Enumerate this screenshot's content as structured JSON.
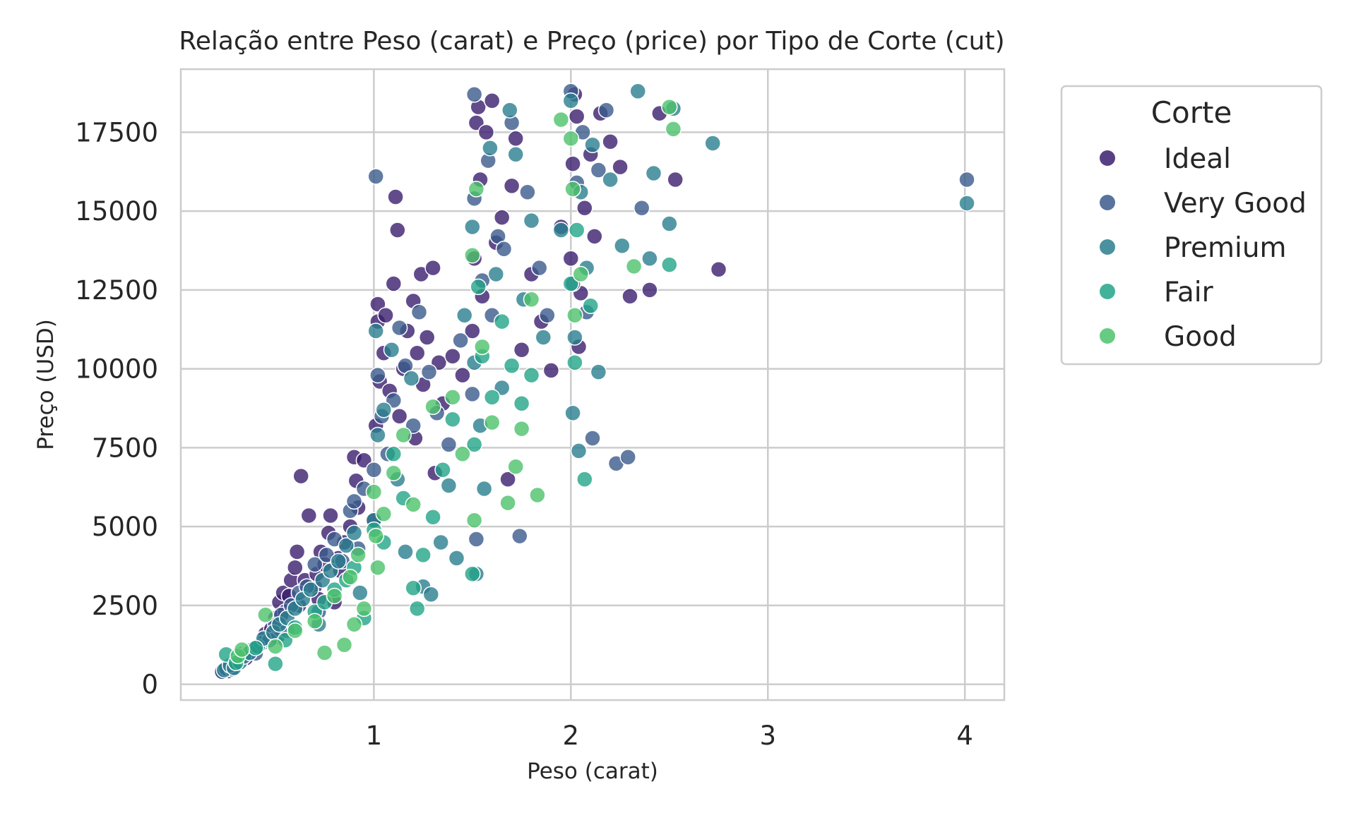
{
  "chart_data": {
    "type": "scatter",
    "title": "Relação entre Peso (carat) e Preço (price) por Tipo de Corte (cut)",
    "xlabel": "Peso (carat)",
    "ylabel": "Preço (USD)",
    "xlim": [
      0.02,
      4.2
    ],
    "ylim": [
      -500,
      19500
    ],
    "xticks": [
      1,
      2,
      3,
      4
    ],
    "yticks": [
      0,
      2500,
      5000,
      7500,
      10000,
      12500,
      15000,
      17500
    ],
    "grid": true,
    "legend": {
      "title": "Corte",
      "placement": "outside-right",
      "entries": [
        "Ideal",
        "Very Good",
        "Premium",
        "Fair",
        "Good"
      ]
    },
    "colors": {
      "Ideal": "#3b1e6e",
      "Very Good": "#3b5a8c",
      "Premium": "#2a7e8e",
      "Fair": "#23a487",
      "Good": "#4cc26c"
    },
    "series": [
      {
        "name": "Ideal",
        "points": [
          [
            0.23,
            380
          ],
          [
            0.26,
            420
          ],
          [
            0.28,
            560
          ],
          [
            0.3,
            620
          ],
          [
            0.31,
            780
          ],
          [
            0.33,
            960
          ],
          [
            0.35,
            830
          ],
          [
            0.38,
            1050
          ],
          [
            0.4,
            1100
          ],
          [
            0.42,
            1250
          ],
          [
            0.45,
            1600
          ],
          [
            0.48,
            1750
          ],
          [
            0.5,
            2100
          ],
          [
            0.51,
            1500
          ],
          [
            0.52,
            2600
          ],
          [
            0.54,
            2900
          ],
          [
            0.55,
            2300
          ],
          [
            0.57,
            2800
          ],
          [
            0.58,
            3300
          ],
          [
            0.6,
            3700
          ],
          [
            0.61,
            4200
          ],
          [
            0.62,
            2500
          ],
          [
            0.63,
            6600
          ],
          [
            0.65,
            3300
          ],
          [
            0.67,
            5350
          ],
          [
            0.7,
            3100
          ],
          [
            0.71,
            3500
          ],
          [
            0.72,
            2700
          ],
          [
            0.73,
            4200
          ],
          [
            0.75,
            3800
          ],
          [
            0.77,
            4800
          ],
          [
            0.78,
            5350
          ],
          [
            0.8,
            2600
          ],
          [
            0.82,
            4000
          ],
          [
            0.83,
            3600
          ],
          [
            0.85,
            4500
          ],
          [
            0.88,
            5000
          ],
          [
            0.9,
            7200
          ],
          [
            0.91,
            6450
          ],
          [
            0.92,
            5600
          ],
          [
            0.95,
            7100
          ],
          [
            1.0,
            5200
          ],
          [
            1.01,
            8200
          ],
          [
            1.02,
            11500
          ],
          [
            1.02,
            12050
          ],
          [
            1.03,
            9600
          ],
          [
            1.05,
            10500
          ],
          [
            1.06,
            11700
          ],
          [
            1.08,
            9300
          ],
          [
            1.1,
            12700
          ],
          [
            1.11,
            15450
          ],
          [
            1.12,
            14400
          ],
          [
            1.13,
            8500
          ],
          [
            1.15,
            10000
          ],
          [
            1.17,
            11200
          ],
          [
            1.2,
            12150
          ],
          [
            1.21,
            7800
          ],
          [
            1.22,
            10500
          ],
          [
            1.24,
            13000
          ],
          [
            1.25,
            9500
          ],
          [
            1.27,
            11000
          ],
          [
            1.3,
            13200
          ],
          [
            1.31,
            6700
          ],
          [
            1.33,
            10200
          ],
          [
            1.35,
            8900
          ],
          [
            1.4,
            10400
          ],
          [
            1.45,
            9800
          ],
          [
            1.5,
            11200
          ],
          [
            1.51,
            13500
          ],
          [
            1.52,
            17800
          ],
          [
            1.53,
            18300
          ],
          [
            1.54,
            16000
          ],
          [
            1.55,
            12300
          ],
          [
            1.57,
            17500
          ],
          [
            1.6,
            18500
          ],
          [
            1.62,
            14000
          ],
          [
            1.65,
            14800
          ],
          [
            1.68,
            6500
          ],
          [
            1.7,
            15800
          ],
          [
            1.72,
            17300
          ],
          [
            1.75,
            10600
          ],
          [
            1.8,
            13000
          ],
          [
            1.85,
            11500
          ],
          [
            1.9,
            9950
          ],
          [
            1.95,
            14500
          ],
          [
            2.0,
            13500
          ],
          [
            2.01,
            16500
          ],
          [
            2.02,
            18700
          ],
          [
            2.03,
            18000
          ],
          [
            2.04,
            10700
          ],
          [
            2.05,
            12400
          ],
          [
            2.07,
            15100
          ],
          [
            2.1,
            16800
          ],
          [
            2.12,
            14200
          ],
          [
            2.15,
            18100
          ],
          [
            2.2,
            17200
          ],
          [
            2.25,
            16400
          ],
          [
            2.3,
            12300
          ],
          [
            2.4,
            12500
          ],
          [
            2.45,
            18100
          ],
          [
            2.53,
            16000
          ],
          [
            2.75,
            13150
          ]
        ]
      },
      {
        "name": "Very Good",
        "points": [
          [
            0.23,
            400
          ],
          [
            0.25,
            500
          ],
          [
            0.28,
            480
          ],
          [
            0.3,
            720
          ],
          [
            0.32,
            850
          ],
          [
            0.35,
            950
          ],
          [
            0.38,
            1100
          ],
          [
            0.4,
            980
          ],
          [
            0.43,
            1300
          ],
          [
            0.47,
            1400
          ],
          [
            0.5,
            1900
          ],
          [
            0.53,
            2200
          ],
          [
            0.56,
            1700
          ],
          [
            0.58,
            2500
          ],
          [
            0.62,
            2900
          ],
          [
            0.66,
            3100
          ],
          [
            0.7,
            3800
          ],
          [
            0.72,
            2300
          ],
          [
            0.76,
            4100
          ],
          [
            0.8,
            4600
          ],
          [
            0.84,
            3900
          ],
          [
            0.88,
            5500
          ],
          [
            0.9,
            5800
          ],
          [
            0.92,
            4300
          ],
          [
            0.95,
            6200
          ],
          [
            1.0,
            6800
          ],
          [
            1.01,
            16100
          ],
          [
            1.02,
            9800
          ],
          [
            1.04,
            8500
          ],
          [
            1.07,
            7300
          ],
          [
            1.1,
            9000
          ],
          [
            1.13,
            11300
          ],
          [
            1.16,
            10100
          ],
          [
            1.2,
            8200
          ],
          [
            1.23,
            11800
          ],
          [
            1.28,
            9900
          ],
          [
            1.32,
            8600
          ],
          [
            1.38,
            7600
          ],
          [
            1.44,
            10900
          ],
          [
            1.5,
            9200
          ],
          [
            1.51,
            15400
          ],
          [
            1.51,
            18700
          ],
          [
            1.52,
            4600
          ],
          [
            1.55,
            12800
          ],
          [
            1.58,
            16600
          ],
          [
            1.6,
            11700
          ],
          [
            1.63,
            14200
          ],
          [
            1.66,
            13800
          ],
          [
            1.7,
            17800
          ],
          [
            1.74,
            4700
          ],
          [
            1.78,
            15600
          ],
          [
            1.84,
            13200
          ],
          [
            1.88,
            11700
          ],
          [
            2.0,
            18800
          ],
          [
            2.01,
            12700
          ],
          [
            2.03,
            15900
          ],
          [
            2.06,
            17500
          ],
          [
            2.08,
            11800
          ],
          [
            2.11,
            7800
          ],
          [
            2.14,
            16300
          ],
          [
            2.18,
            18200
          ],
          [
            2.23,
            7000
          ],
          [
            2.29,
            7200
          ],
          [
            2.36,
            15100
          ],
          [
            4.01,
            16000
          ]
        ]
      },
      {
        "name": "Premium",
        "points": [
          [
            0.24,
            450
          ],
          [
            0.27,
            600
          ],
          [
            0.29,
            520
          ],
          [
            0.32,
            700
          ],
          [
            0.34,
            880
          ],
          [
            0.37,
            1000
          ],
          [
            0.41,
            1200
          ],
          [
            0.44,
            1450
          ],
          [
            0.49,
            1650
          ],
          [
            0.52,
            1900
          ],
          [
            0.56,
            2100
          ],
          [
            0.6,
            2400
          ],
          [
            0.64,
            2700
          ],
          [
            0.68,
            3000
          ],
          [
            0.72,
            1900
          ],
          [
            0.74,
            3300
          ],
          [
            0.78,
            3600
          ],
          [
            0.82,
            3900
          ],
          [
            0.86,
            4400
          ],
          [
            0.9,
            4800
          ],
          [
            0.93,
            2900
          ],
          [
            1.0,
            5200
          ],
          [
            1.01,
            11200
          ],
          [
            1.02,
            7900
          ],
          [
            1.05,
            8700
          ],
          [
            1.09,
            10600
          ],
          [
            1.12,
            6500
          ],
          [
            1.16,
            4200
          ],
          [
            1.19,
            9700
          ],
          [
            1.25,
            3100
          ],
          [
            1.29,
            2850
          ],
          [
            1.34,
            4500
          ],
          [
            1.38,
            6300
          ],
          [
            1.42,
            4000
          ],
          [
            1.46,
            11700
          ],
          [
            1.5,
            14500
          ],
          [
            1.51,
            10200
          ],
          [
            1.52,
            3500
          ],
          [
            1.54,
            8200
          ],
          [
            1.56,
            6200
          ],
          [
            1.59,
            17000
          ],
          [
            1.62,
            13000
          ],
          [
            1.65,
            9400
          ],
          [
            1.69,
            18200
          ],
          [
            1.72,
            16800
          ],
          [
            1.76,
            12200
          ],
          [
            1.8,
            14700
          ],
          [
            1.86,
            11000
          ],
          [
            1.95,
            14400
          ],
          [
            2.0,
            18500
          ],
          [
            2.01,
            8600
          ],
          [
            2.02,
            11000
          ],
          [
            2.04,
            7400
          ],
          [
            2.05,
            15600
          ],
          [
            2.08,
            13200
          ],
          [
            2.11,
            17100
          ],
          [
            2.14,
            9900
          ],
          [
            2.2,
            16000
          ],
          [
            2.26,
            13900
          ],
          [
            2.34,
            18800
          ],
          [
            2.4,
            13500
          ],
          [
            2.42,
            16200
          ],
          [
            2.5,
            14600
          ],
          [
            2.52,
            18250
          ],
          [
            2.72,
            17150
          ],
          [
            4.01,
            15250
          ]
        ]
      },
      {
        "name": "Fair",
        "points": [
          [
            0.25,
            950
          ],
          [
            0.3,
            680
          ],
          [
            0.4,
            1150
          ],
          [
            0.5,
            650
          ],
          [
            0.55,
            1400
          ],
          [
            0.6,
            1800
          ],
          [
            0.7,
            2300
          ],
          [
            0.75,
            2600
          ],
          [
            0.8,
            3000
          ],
          [
            0.86,
            3300
          ],
          [
            0.9,
            3700
          ],
          [
            0.95,
            2100
          ],
          [
            1.0,
            4900
          ],
          [
            1.05,
            4500
          ],
          [
            1.1,
            7300
          ],
          [
            1.15,
            5900
          ],
          [
            1.2,
            3050
          ],
          [
            1.22,
            2400
          ],
          [
            1.25,
            4100
          ],
          [
            1.3,
            5300
          ],
          [
            1.35,
            6800
          ],
          [
            1.4,
            8400
          ],
          [
            1.5,
            3500
          ],
          [
            1.51,
            7600
          ],
          [
            1.53,
            12600
          ],
          [
            1.55,
            10400
          ],
          [
            1.6,
            9100
          ],
          [
            1.65,
            11500
          ],
          [
            1.7,
            10100
          ],
          [
            1.75,
            8900
          ],
          [
            1.8,
            9800
          ],
          [
            2.0,
            12700
          ],
          [
            2.02,
            10200
          ],
          [
            2.03,
            14400
          ],
          [
            2.07,
            6500
          ],
          [
            2.1,
            12000
          ],
          [
            2.5,
            13300
          ]
        ]
      },
      {
        "name": "Good",
        "points": [
          [
            0.31,
            900
          ],
          [
            0.33,
            1100
          ],
          [
            0.45,
            2200
          ],
          [
            0.5,
            1200
          ],
          [
            0.6,
            1700
          ],
          [
            0.7,
            2000
          ],
          [
            0.75,
            1000
          ],
          [
            0.8,
            2800
          ],
          [
            0.85,
            1250
          ],
          [
            0.88,
            3400
          ],
          [
            0.9,
            1900
          ],
          [
            0.92,
            4100
          ],
          [
            0.95,
            2400
          ],
          [
            1.0,
            6100
          ],
          [
            1.01,
            4700
          ],
          [
            1.02,
            3700
          ],
          [
            1.05,
            5400
          ],
          [
            1.1,
            6700
          ],
          [
            1.15,
            7900
          ],
          [
            1.2,
            5700
          ],
          [
            1.3,
            8800
          ],
          [
            1.4,
            9100
          ],
          [
            1.45,
            7300
          ],
          [
            1.5,
            13600
          ],
          [
            1.51,
            5200
          ],
          [
            1.52,
            15700
          ],
          [
            1.55,
            10700
          ],
          [
            1.6,
            8300
          ],
          [
            1.68,
            5750
          ],
          [
            1.72,
            6900
          ],
          [
            1.75,
            8100
          ],
          [
            1.8,
            12200
          ],
          [
            1.83,
            6000
          ],
          [
            1.95,
            17900
          ],
          [
            2.0,
            17300
          ],
          [
            2.01,
            15700
          ],
          [
            2.02,
            11700
          ],
          [
            2.05,
            13000
          ],
          [
            2.32,
            13250
          ],
          [
            2.5,
            18300
          ],
          [
            2.52,
            17600
          ]
        ]
      }
    ]
  }
}
